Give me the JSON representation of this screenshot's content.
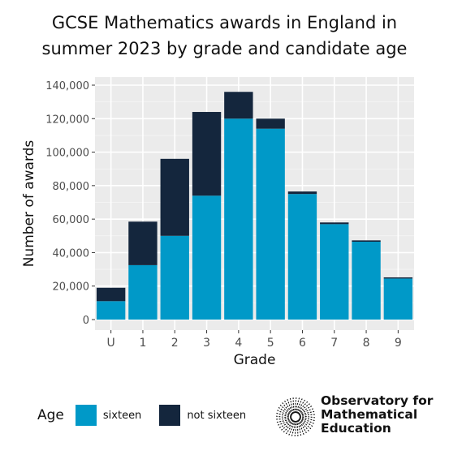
{
  "title": [
    "GCSE Mathematics awards in England in",
    "summer 2023 by grade and candidate age"
  ],
  "chart_data": {
    "type": "bar",
    "stacked": true,
    "categories": [
      "U",
      "1",
      "2",
      "3",
      "4",
      "5",
      "6",
      "7",
      "8",
      "9"
    ],
    "series": [
      {
        "name": "sixteen",
        "color": "#0099C8",
        "values": [
          11000,
          32500,
          50000,
          74000,
          120000,
          114000,
          75000,
          57000,
          46500,
          24500
        ]
      },
      {
        "name": "not sixteen",
        "color": "#14263D",
        "values": [
          8000,
          26000,
          46000,
          50000,
          16000,
          6000,
          1500,
          1000,
          800,
          700
        ]
      }
    ],
    "xlabel": "Grade",
    "ylabel": "Number of awards",
    "ylim": [
      0,
      140000
    ],
    "yticks": [
      0,
      20000,
      40000,
      60000,
      80000,
      100000,
      120000,
      140000
    ],
    "ytick_labels": [
      "0",
      "20,000",
      "40,000",
      "60,000",
      "80,000",
      "100,000",
      "120,000",
      "140,000"
    ],
    "grid": true,
    "legend_title": "Age",
    "legend_position": "bottom-left"
  },
  "brand": {
    "lines": [
      "Observatory for",
      "Mathematical",
      "Education"
    ]
  }
}
